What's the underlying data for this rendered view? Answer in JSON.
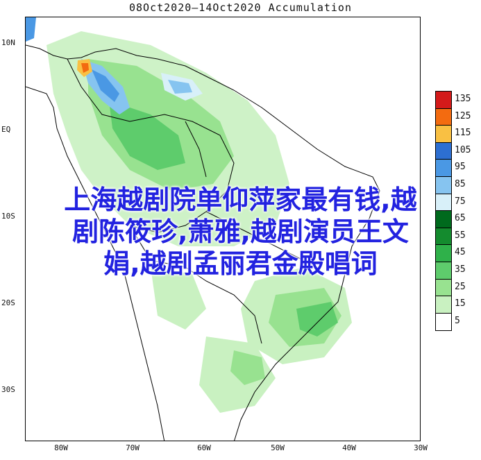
{
  "title": "08Oct2020—14Oct2020 Accumulation",
  "y_labels": [
    "10N",
    "EQ",
    "10S",
    "20S",
    "30S"
  ],
  "x_labels": [
    "80W",
    "70W",
    "60W",
    "50W",
    "40W",
    "30W"
  ],
  "legend": {
    "values": [
      "135",
      "125",
      "115",
      "105",
      "95",
      "85",
      "75",
      "65",
      "55",
      "45",
      "35",
      "25",
      "15",
      "5"
    ],
    "colors": [
      "#d41a1a",
      "#f36b10",
      "#f9c043",
      "#2d6fd1",
      "#4a98e4",
      "#86c4f0",
      "#d8f0f9",
      "#006a1d",
      "#148b2e",
      "#2fb14a",
      "#5ecc6c",
      "#98e290",
      "#c9f1c1",
      "#ffffff"
    ]
  },
  "overlay_text": [
    "上海越剧院单仰萍家最有钱,越",
    "剧陈筱珍,萧雅,越剧演员王文",
    "娟,越剧孟丽君金殿唱词"
  ]
}
